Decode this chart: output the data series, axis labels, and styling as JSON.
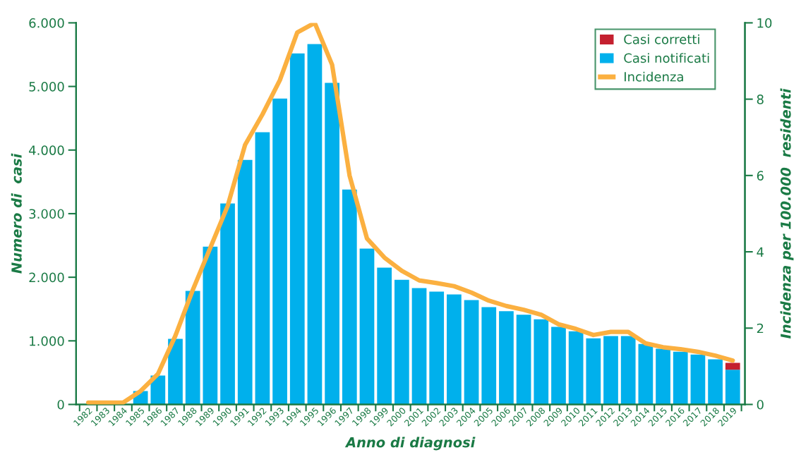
{
  "chart_data": {
    "type": "bar",
    "stacked": true,
    "xlabel": "Anno di diagnosi",
    "ylabel": "Numero di  casi",
    "y2label": "Incidenza per 100.000  residenti",
    "categories": [
      "1982",
      "1983",
      "1984",
      "1985",
      "1986",
      "1987",
      "1988",
      "1989",
      "1990",
      "1991",
      "1992",
      "1993",
      "1994",
      "1995",
      "1996",
      "1997",
      "1998",
      "1999",
      "2000",
      "2001",
      "2002",
      "2003",
      "2004",
      "2005",
      "2006",
      "2007",
      "2008",
      "2009",
      "2010",
      "2011",
      "2012",
      "2013",
      "2014",
      "2015",
      "2016",
      "2017",
      "2018",
      "2019"
    ],
    "series": [
      {
        "name": "Casi notificati",
        "color": "#00b0ec",
        "values": [
          0,
          0,
          5,
          210,
          455,
          1030,
          1785,
          2480,
          3160,
          3845,
          4280,
          4810,
          5520,
          5665,
          5055,
          3380,
          2450,
          2150,
          1960,
          1830,
          1775,
          1730,
          1640,
          1530,
          1465,
          1410,
          1340,
          1220,
          1150,
          1040,
          1075,
          1075,
          950,
          875,
          830,
          785,
          710,
          545
        ]
      },
      {
        "name": "Casi corretti",
        "color": "#c4202f",
        "values": [
          null,
          null,
          null,
          null,
          null,
          null,
          null,
          null,
          null,
          null,
          null,
          null,
          null,
          null,
          null,
          null,
          null,
          null,
          null,
          null,
          null,
          null,
          null,
          null,
          null,
          null,
          null,
          null,
          null,
          null,
          null,
          null,
          null,
          null,
          null,
          null,
          null,
          110
        ]
      },
      {
        "name": "Incidenza",
        "type": "line",
        "axis": "y2",
        "color": "#fbb040",
        "values": [
          0.05,
          0.05,
          0.05,
          0.35,
          0.8,
          1.8,
          3.0,
          4.1,
          5.2,
          6.8,
          7.6,
          8.5,
          9.75,
          10.0,
          8.9,
          6.0,
          4.35,
          3.85,
          3.5,
          3.25,
          3.18,
          3.1,
          2.93,
          2.72,
          2.58,
          2.48,
          2.35,
          2.1,
          1.98,
          1.82,
          1.9,
          1.9,
          1.6,
          1.5,
          1.45,
          1.38,
          1.28,
          1.15
        ]
      }
    ],
    "ylim": [
      0,
      6000
    ],
    "yticks": [
      0,
      {
        "value": 1000,
        "label": "1.000"
      },
      {
        "value": 2000,
        "label": "2.000"
      },
      {
        "value": 3000,
        "label": "3.000"
      },
      {
        "value": 4000,
        "label": "4.000"
      },
      {
        "value": 5000,
        "label": "5.000"
      },
      {
        "value": 6000,
        "label": "6.000"
      }
    ],
    "y2lim": [
      0,
      10
    ],
    "y2ticks": [
      0,
      2,
      4,
      6,
      8,
      10
    ],
    "legend": "top right",
    "grid": false
  }
}
